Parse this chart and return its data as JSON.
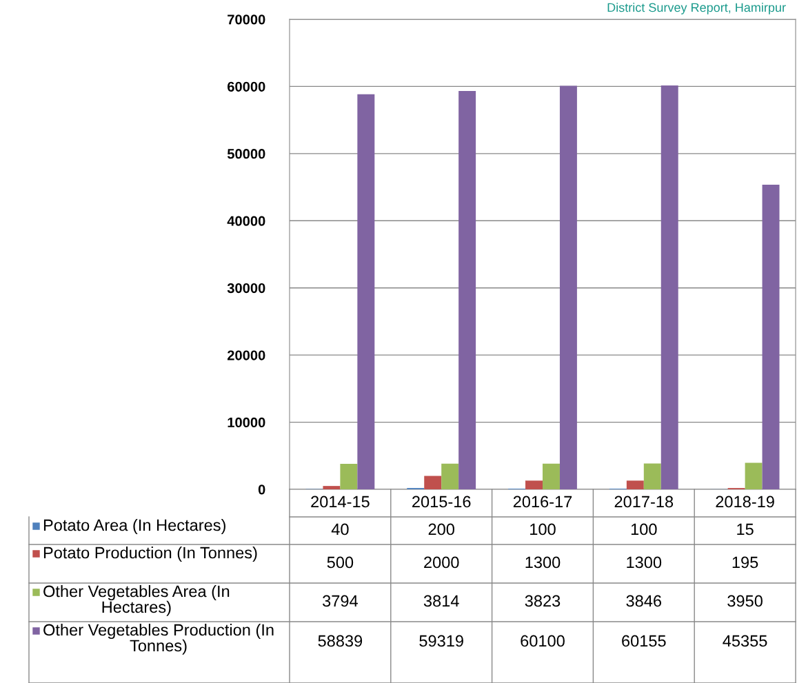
{
  "chart_data": {
    "type": "bar",
    "annotations": [
      "District Survey Report, Hamirpur"
    ],
    "categories": [
      "2014-15",
      "2015-16",
      "2016-17",
      "2017-18",
      "2018-19"
    ],
    "series": [
      {
        "name": "Potato Area (In Hectares)",
        "color": "#4f81bd",
        "values": [
          40,
          200,
          100,
          100,
          15
        ]
      },
      {
        "name": "Potato Production (In Tonnes)",
        "color": "#c0504d",
        "values": [
          500,
          2000,
          1300,
          1300,
          195
        ]
      },
      {
        "name": "Other Vegetables Area (In Hectares)",
        "color": "#9bbb59",
        "values": [
          3794,
          3814,
          3823,
          3846,
          3950
        ]
      },
      {
        "name": "Other Vegetables Production (In Tonnes)",
        "color": "#8064a2",
        "values": [
          58839,
          59319,
          60100,
          60155,
          45355
        ]
      }
    ],
    "ylim": [
      0,
      70000
    ],
    "yticks": [
      0,
      10000,
      20000,
      30000,
      40000,
      50000,
      60000,
      70000
    ],
    "grid": "y",
    "data_labels": true,
    "legend": "bottom"
  }
}
